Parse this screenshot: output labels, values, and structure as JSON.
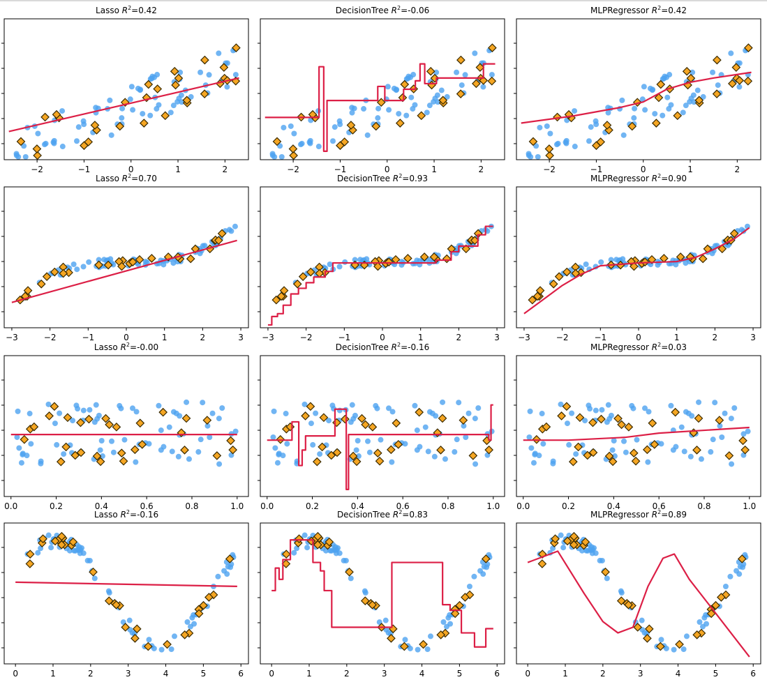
{
  "colors": {
    "train_points": "#4da3f0",
    "test_points": "#f5a623",
    "test_edge": "#3a2a00",
    "model_line": "#dc1f46",
    "axes": "#000000"
  },
  "chart_data": [
    {
      "type": "scatter",
      "model": "Lasso",
      "r2": "0.42",
      "row": 0,
      "col": 0,
      "xlim": [
        -2.7,
        2.5
      ],
      "xticks": [
        "−2",
        "−1",
        "0",
        "1",
        "2"
      ],
      "xtickvals": [
        -2,
        -1,
        0,
        1,
        2
      ],
      "line": [
        [
          -2.6,
          0.2
        ],
        [
          2.3,
          0.58
        ]
      ],
      "stepped": false
    },
    {
      "type": "scatter",
      "model": "DecisionTree",
      "r2": "-0.06",
      "row": 0,
      "col": 1,
      "xlim": [
        -2.7,
        2.5
      ],
      "xticks": [
        "−2",
        "−1",
        "0",
        "1",
        "2"
      ],
      "xtickvals": [
        -2,
        -1,
        0,
        1,
        2
      ],
      "line": [
        [
          -2.6,
          0.3
        ],
        [
          -1.45,
          0.3
        ],
        [
          -1.45,
          0.66
        ],
        [
          -1.35,
          0.66
        ],
        [
          -1.35,
          0.06
        ],
        [
          -1.28,
          0.06
        ],
        [
          -1.28,
          0.42
        ],
        [
          -0.2,
          0.42
        ],
        [
          -0.2,
          0.52
        ],
        [
          -0.05,
          0.52
        ],
        [
          -0.05,
          0.42
        ],
        [
          0.35,
          0.42
        ],
        [
          0.35,
          0.5
        ],
        [
          0.6,
          0.5
        ],
        [
          0.6,
          0.56
        ],
        [
          0.7,
          0.56
        ],
        [
          0.7,
          0.68
        ],
        [
          0.8,
          0.68
        ],
        [
          0.8,
          0.54
        ],
        [
          1.05,
          0.54
        ],
        [
          1.05,
          0.58
        ],
        [
          2.05,
          0.58
        ],
        [
          2.05,
          0.68
        ],
        [
          2.3,
          0.68
        ]
      ],
      "stepped": true
    },
    {
      "type": "scatter",
      "model": "MLPRegressor",
      "r2": "0.42",
      "row": 0,
      "col": 2,
      "xlim": [
        -2.7,
        2.5
      ],
      "xticks": [
        "−2",
        "−1",
        "0",
        "1",
        "2"
      ],
      "xtickvals": [
        -2,
        -1,
        0,
        1,
        2
      ],
      "line": [
        [
          -2.6,
          0.26
        ],
        [
          -1.5,
          0.31
        ],
        [
          -0.5,
          0.37
        ],
        [
          0,
          0.41
        ],
        [
          0.5,
          0.5
        ],
        [
          1.0,
          0.55
        ],
        [
          1.5,
          0.58
        ],
        [
          2.3,
          0.62
        ]
      ],
      "stepped": false
    },
    {
      "type": "scatter",
      "model": "Lasso",
      "r2": "0.70",
      "row": 1,
      "col": 0,
      "xlim": [
        -3.2,
        3.2
      ],
      "xticks": [
        "−3",
        "−2",
        "−1",
        "0",
        "1",
        "2",
        "3"
      ],
      "xtickvals": [
        -3,
        -2,
        -1,
        0,
        1,
        2,
        3
      ],
      "line": [
        [
          -3.0,
          0.18
        ],
        [
          2.9,
          0.62
        ]
      ],
      "stepped": false
    },
    {
      "type": "scatter",
      "model": "DecisionTree",
      "r2": "0.93",
      "row": 1,
      "col": 1,
      "xlim": [
        -3.2,
        3.2
      ],
      "xticks": [
        "−3",
        "−2",
        "−1",
        "0",
        "1",
        "2",
        "3"
      ],
      "xtickvals": [
        -3,
        -2,
        -1,
        0,
        1,
        2,
        3
      ],
      "line": [
        [
          -3.0,
          0.02
        ],
        [
          -2.9,
          0.02
        ],
        [
          -2.9,
          0.08
        ],
        [
          -2.75,
          0.08
        ],
        [
          -2.75,
          0.1
        ],
        [
          -2.6,
          0.1
        ],
        [
          -2.6,
          0.16
        ],
        [
          -2.4,
          0.16
        ],
        [
          -2.4,
          0.24
        ],
        [
          -2.2,
          0.24
        ],
        [
          -2.2,
          0.28
        ],
        [
          -2.0,
          0.28
        ],
        [
          -2.0,
          0.32
        ],
        [
          -1.8,
          0.32
        ],
        [
          -1.8,
          0.36
        ],
        [
          -1.5,
          0.36
        ],
        [
          -1.5,
          0.4
        ],
        [
          -1.3,
          0.4
        ],
        [
          -1.3,
          0.46
        ],
        [
          1.4,
          0.46
        ],
        [
          1.4,
          0.48
        ],
        [
          1.8,
          0.48
        ],
        [
          1.8,
          0.54
        ],
        [
          2.0,
          0.54
        ],
        [
          2.0,
          0.58
        ],
        [
          2.5,
          0.58
        ],
        [
          2.5,
          0.66
        ],
        [
          2.7,
          0.66
        ],
        [
          2.7,
          0.72
        ],
        [
          2.9,
          0.72
        ]
      ],
      "stepped": true
    },
    {
      "type": "scatter",
      "model": "MLPRegressor",
      "r2": "0.90",
      "row": 1,
      "col": 2,
      "xlim": [
        -3.2,
        3.2
      ],
      "xticks": [
        "−3",
        "−2",
        "−1",
        "0",
        "1",
        "2",
        "3"
      ],
      "xtickvals": [
        -3,
        -2,
        -1,
        0,
        1,
        2,
        3
      ],
      "line": [
        [
          -3.0,
          0.1
        ],
        [
          -2.5,
          0.2
        ],
        [
          -2.0,
          0.3
        ],
        [
          -1.5,
          0.38
        ],
        [
          -1.0,
          0.44
        ],
        [
          0,
          0.46
        ],
        [
          1.0,
          0.47
        ],
        [
          1.5,
          0.5
        ],
        [
          2.0,
          0.56
        ],
        [
          2.5,
          0.63
        ],
        [
          2.9,
          0.71
        ]
      ],
      "stepped": false
    },
    {
      "type": "scatter",
      "model": "Lasso",
      "r2": "-0.00",
      "row": 2,
      "col": 0,
      "xlim": [
        -0.03,
        1.05
      ],
      "xticks": [
        "0.0",
        "0.2",
        "0.4",
        "0.6",
        "0.8",
        "1.0"
      ],
      "xtickvals": [
        0,
        0.2,
        0.4,
        0.6,
        0.8,
        1.0
      ],
      "line": [
        [
          0.0,
          0.44
        ],
        [
          1.0,
          0.44
        ]
      ],
      "stepped": false
    },
    {
      "type": "scatter",
      "model": "DecisionTree",
      "r2": "-0.16",
      "row": 2,
      "col": 1,
      "xlim": [
        -0.03,
        1.05
      ],
      "xticks": [
        "0.0",
        "0.2",
        "0.4",
        "0.6",
        "0.8",
        "1.0"
      ],
      "xtickvals": [
        0,
        0.2,
        0.4,
        0.6,
        0.8,
        1.0
      ],
      "line": [
        [
          0.0,
          0.4
        ],
        [
          0.11,
          0.4
        ],
        [
          0.11,
          0.53
        ],
        [
          0.14,
          0.53
        ],
        [
          0.14,
          0.22
        ],
        [
          0.155,
          0.22
        ],
        [
          0.155,
          0.33
        ],
        [
          0.17,
          0.33
        ],
        [
          0.17,
          0.43
        ],
        [
          0.3,
          0.43
        ],
        [
          0.3,
          0.62
        ],
        [
          0.35,
          0.62
        ],
        [
          0.35,
          0.05
        ],
        [
          0.36,
          0.05
        ],
        [
          0.36,
          0.44
        ],
        [
          0.98,
          0.44
        ],
        [
          0.98,
          0.4
        ],
        [
          0.99,
          0.4
        ],
        [
          0.99,
          0.65
        ],
        [
          1.0,
          0.65
        ]
      ],
      "stepped": true
    },
    {
      "type": "scatter",
      "model": "MLPRegressor",
      "r2": "0.03",
      "row": 2,
      "col": 2,
      "xlim": [
        -0.03,
        1.05
      ],
      "xticks": [
        "0.0",
        "0.2",
        "0.4",
        "0.6",
        "0.8",
        "1.0"
      ],
      "xtickvals": [
        0,
        0.2,
        0.4,
        0.6,
        0.8,
        1.0
      ],
      "line": [
        [
          0.0,
          0.4
        ],
        [
          0.2,
          0.4
        ],
        [
          0.45,
          0.42
        ],
        [
          0.6,
          0.45
        ],
        [
          0.8,
          0.47
        ],
        [
          1.0,
          0.49
        ]
      ],
      "stepped": false
    },
    {
      "type": "scatter",
      "model": "Lasso",
      "r2": "-0.16",
      "row": 3,
      "col": 0,
      "xlim": [
        -0.3,
        6.2
      ],
      "xticks": [
        "0",
        "1",
        "2",
        "3",
        "4",
        "5",
        "6"
      ],
      "xtickvals": [
        0,
        1,
        2,
        3,
        4,
        5,
        6
      ],
      "line": [
        [
          0.0,
          0.58
        ],
        [
          5.9,
          0.55
        ]
      ],
      "stepped": false
    },
    {
      "type": "scatter",
      "model": "DecisionTree",
      "r2": "0.83",
      "row": 3,
      "col": 1,
      "xlim": [
        -0.3,
        6.2
      ],
      "xticks": [
        "0",
        "1",
        "2",
        "3",
        "4",
        "5",
        "6"
      ],
      "xtickvals": [
        0,
        1,
        2,
        3,
        4,
        5,
        6
      ],
      "line": [
        [
          0.0,
          0.52
        ],
        [
          0.1,
          0.52
        ],
        [
          0.1,
          0.68
        ],
        [
          0.2,
          0.68
        ],
        [
          0.2,
          0.6
        ],
        [
          0.3,
          0.6
        ],
        [
          0.3,
          0.74
        ],
        [
          0.5,
          0.74
        ],
        [
          0.5,
          0.88
        ],
        [
          1.1,
          0.88
        ],
        [
          1.1,
          0.72
        ],
        [
          1.3,
          0.72
        ],
        [
          1.3,
          0.66
        ],
        [
          1.4,
          0.66
        ],
        [
          1.4,
          0.52
        ],
        [
          1.6,
          0.52
        ],
        [
          1.6,
          0.26
        ],
        [
          3.2,
          0.26
        ],
        [
          3.2,
          0.72
        ],
        [
          4.55,
          0.72
        ],
        [
          4.55,
          0.42
        ],
        [
          4.75,
          0.42
        ],
        [
          4.75,
          0.38
        ],
        [
          5.05,
          0.38
        ],
        [
          5.05,
          0.22
        ],
        [
          5.4,
          0.22
        ],
        [
          5.4,
          0.12
        ],
        [
          5.7,
          0.12
        ],
        [
          5.7,
          0.25
        ],
        [
          5.9,
          0.25
        ]
      ],
      "stepped": true
    },
    {
      "type": "scatter",
      "model": "MLPRegressor",
      "r2": "0.89",
      "row": 3,
      "col": 2,
      "xlim": [
        -0.3,
        6.2
      ],
      "xticks": [
        "0",
        "1",
        "2",
        "3",
        "4",
        "5",
        "6"
      ],
      "xtickvals": [
        0,
        1,
        2,
        3,
        4,
        5,
        6
      ],
      "line": [
        [
          0.0,
          0.72
        ],
        [
          0.8,
          0.8
        ],
        [
          1.5,
          0.5
        ],
        [
          2.0,
          0.3
        ],
        [
          2.4,
          0.22
        ],
        [
          2.8,
          0.26
        ],
        [
          3.2,
          0.55
        ],
        [
          3.6,
          0.75
        ],
        [
          3.9,
          0.78
        ],
        [
          4.3,
          0.6
        ],
        [
          5.0,
          0.36
        ],
        [
          5.9,
          0.05
        ]
      ],
      "stepped": false
    }
  ]
}
